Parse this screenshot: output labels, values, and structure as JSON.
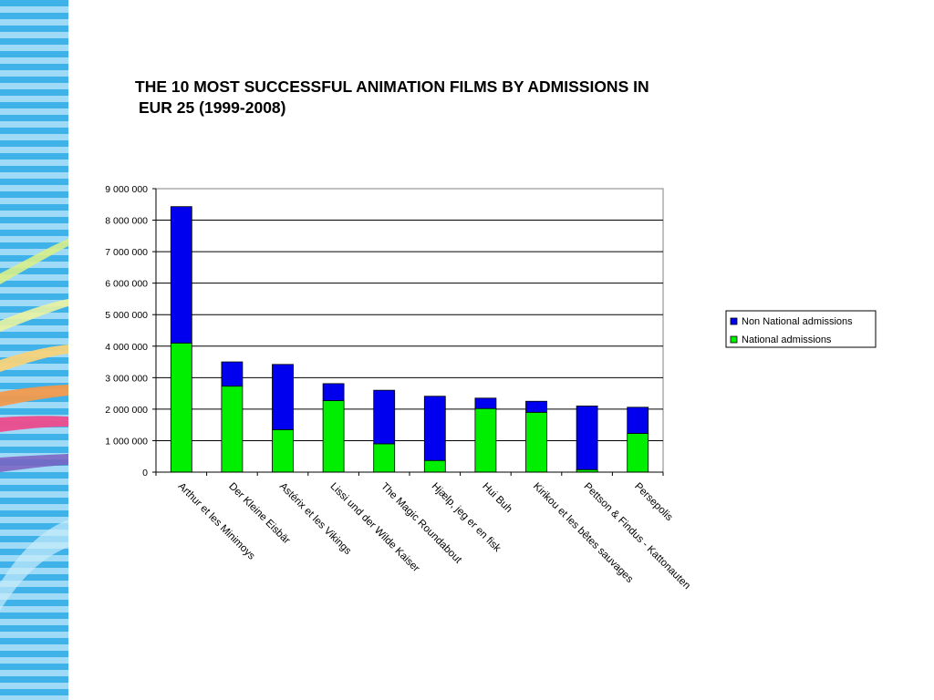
{
  "slide": {
    "title_line1": "THE 10 MOST SUCCESSFUL ANIMATION FILMS BY ADMISSIONS IN",
    "title_line2": "EUR 25 (1999-2008)"
  },
  "chart_data": {
    "type": "bar",
    "stacked": true,
    "categories": [
      "Arthur et les Minimoys",
      "Der Kleine Eisbär",
      "Astérix et les Vikings",
      "Lissi und der Wilde Kaiser",
      "The Magic Roundabout",
      "Hjælp, jeg er en fisk",
      "Hui Buh",
      "Kirikou et les bêtes sauvages",
      "Pettson & Findus - Kattonauten",
      "Persepolis"
    ],
    "series": [
      {
        "name": "National admissions",
        "color": "#00ee00",
        "values": [
          4100000,
          2730000,
          1350000,
          2270000,
          900000,
          370000,
          2020000,
          1900000,
          80000,
          1230000
        ]
      },
      {
        "name": "Non National admissions",
        "color": "#0000ee",
        "values": [
          4330000,
          770000,
          2070000,
          540000,
          1700000,
          2040000,
          330000,
          350000,
          2020000,
          830000
        ]
      }
    ],
    "yticks": [
      "0",
      "1 000 000",
      "2 000 000",
      "3 000 000",
      "4 000 000",
      "5 000 000",
      "6 000 000",
      "7 000 000",
      "8 000 000",
      "9 000 000"
    ],
    "ylim": [
      0,
      9000000
    ],
    "ystep": 1000000,
    "grid": true,
    "legend_position": "right",
    "legend_order": [
      "Non National admissions",
      "National admissions"
    ],
    "title": "THE 10 MOST SUCCESSFUL ANIMATION FILMS BY ADMISSIONS IN EUR 25 (1999-2008)",
    "xlabel": "",
    "ylabel": ""
  }
}
